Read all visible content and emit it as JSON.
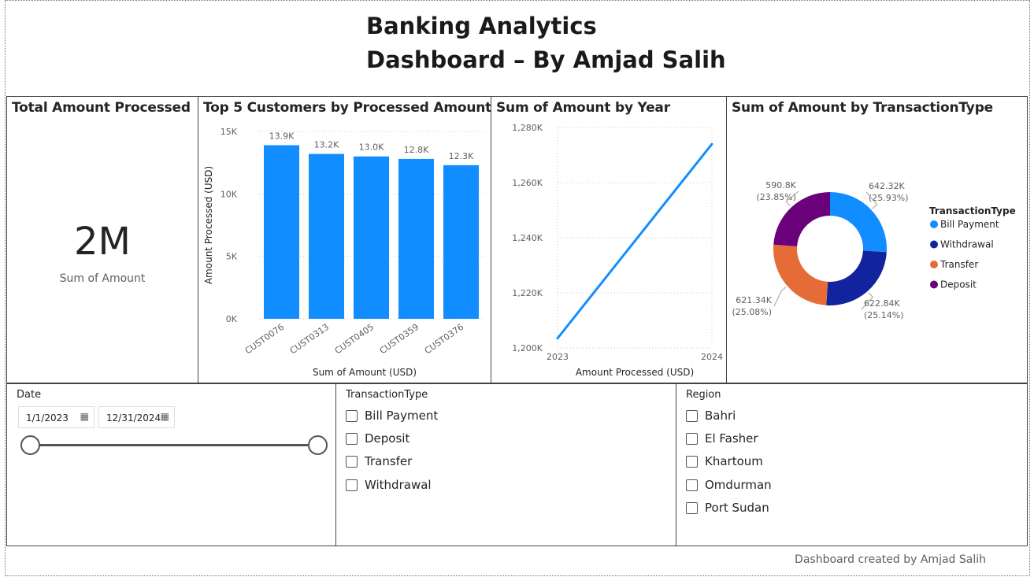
{
  "title_line1": "Banking Analytics",
  "title_line2": "Dashboard – By Amjad Salih",
  "kpi": {
    "title": "Total Amount Processed",
    "value": "2M",
    "label": "Sum of Amount"
  },
  "colors": {
    "bar": "#118dff",
    "line": "#118dff",
    "bill_payment": "#118dff",
    "withdrawal": "#12239e",
    "transfer": "#e66c37",
    "deposit": "#6b007b"
  },
  "chart_data": [
    {
      "type": "bar",
      "title": "Top 5 Customers by Processed Amount",
      "categories": [
        "CUST0076",
        "CUST0313",
        "CUST0405",
        "CUST0359",
        "CUST0376"
      ],
      "values": [
        13900,
        13200,
        13000,
        12800,
        12300
      ],
      "data_labels": [
        "13.9K",
        "13.2K",
        "13.0K",
        "12.8K",
        "12.3K"
      ],
      "xlabel": "Sum of Amount (USD)",
      "ylabel": "Amount Processed (USD)",
      "ylim": [
        0,
        15000
      ],
      "yticks": [
        {
          "v": 0,
          "label": "0K"
        },
        {
          "v": 5000,
          "label": "5K"
        },
        {
          "v": 10000,
          "label": "10K"
        },
        {
          "v": 15000,
          "label": "15K"
        }
      ],
      "grid": true
    },
    {
      "type": "line",
      "title": "Sum of Amount by Year",
      "x": [
        "2023",
        "2024"
      ],
      "values": [
        1203500,
        1274000
      ],
      "xlabel": "Amount Processed (USD)",
      "ylabel": "",
      "ylim": [
        1200000,
        1280000
      ],
      "yticks": [
        {
          "v": 1200000,
          "label": "1,200K"
        },
        {
          "v": 1220000,
          "label": "1,220K"
        },
        {
          "v": 1240000,
          "label": "1,240K"
        },
        {
          "v": 1260000,
          "label": "1,260K"
        },
        {
          "v": 1280000,
          "label": "1,280K"
        }
      ],
      "grid": true
    },
    {
      "type": "pie",
      "title": "Sum of Amount by TransactionType",
      "legend_title": "TransactionType",
      "legend_position": "right",
      "slices": [
        {
          "name": "Bill Payment",
          "value": 642320,
          "label": "642.32K",
          "pct": "(25.93%)",
          "color": "#118dff"
        },
        {
          "name": "Withdrawal",
          "value": 622840,
          "label": "622.84K",
          "pct": "(25.14%)",
          "color": "#12239e"
        },
        {
          "name": "Transfer",
          "value": 621340,
          "label": "621.34K",
          "pct": "(25.08%)",
          "color": "#e66c37"
        },
        {
          "name": "Deposit",
          "value": 590800,
          "label": "590.8K",
          "pct": "(23.85%)",
          "color": "#6b007b"
        }
      ]
    }
  ],
  "date_slicer": {
    "title": "Date",
    "start": "1/1/2023",
    "end": "12/31/2024",
    "range": [
      0,
      1
    ]
  },
  "type_slicer": {
    "title": "TransactionType",
    "items": [
      "Bill Payment",
      "Deposit",
      "Transfer",
      "Withdrawal"
    ]
  },
  "region_slicer": {
    "title": "Region",
    "items": [
      "Bahri",
      "El Fasher",
      "Khartoum",
      "Omdurman",
      "Port Sudan"
    ]
  },
  "footer": "Dashboard created by Amjad Salih"
}
